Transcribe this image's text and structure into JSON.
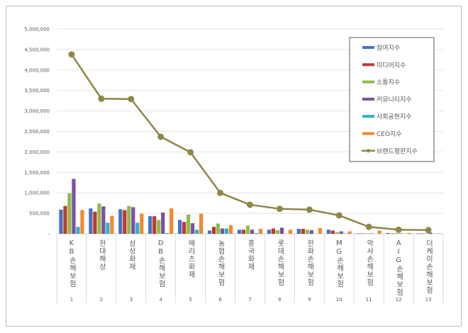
{
  "chart_data": {
    "type": "bar+line",
    "categories": [
      "KB손해보험",
      "현대해상",
      "삼성화재",
      "DB손해보험",
      "메리츠화재",
      "농협손해보험",
      "흥국화재",
      "롯데손해보험",
      "한화손해보험",
      "MG손해보험",
      "악사손해보험",
      "AIG손해보험",
      "더케이손해보험"
    ],
    "ranks": [
      "1",
      "2",
      "3",
      "4",
      "5",
      "6",
      "7",
      "8",
      "9",
      "10",
      "11",
      "12",
      "13"
    ],
    "ylim": [
      0,
      5000000
    ],
    "yticks": [
      0,
      500000,
      1000000,
      1500000,
      2000000,
      2500000,
      3000000,
      3500000,
      4000000,
      4500000,
      5000000
    ],
    "ytick_labels": [
      "-",
      "500,000",
      "1,000,000",
      "1,500,000",
      "2,000,000",
      "2,500,000",
      "3,000,000",
      "3,500,000",
      "4,000,000",
      "4,500,000",
      "5,000,000"
    ],
    "grid": true,
    "legend_placement": "top-right",
    "series": [
      {
        "name": "참여지수",
        "type": "bar",
        "color": "#4472c4",
        "values": [
          590000,
          620000,
          600000,
          430000,
          340000,
          80000,
          100000,
          100000,
          120000,
          100000,
          10000,
          20000,
          10000
        ]
      },
      {
        "name": "미디어지수",
        "type": "bar",
        "color": "#c0392b",
        "values": [
          680000,
          540000,
          580000,
          430000,
          290000,
          170000,
          100000,
          130000,
          120000,
          80000,
          10000,
          10000,
          10000
        ]
      },
      {
        "name": "소통지수",
        "type": "bar",
        "color": "#8fbc45",
        "values": [
          990000,
          740000,
          680000,
          340000,
          470000,
          250000,
          200000,
          90000,
          100000,
          40000,
          10000,
          20000,
          10000
        ]
      },
      {
        "name": "커뮤니티지수",
        "type": "bar",
        "color": "#7b4fa8",
        "values": [
          1340000,
          670000,
          650000,
          520000,
          260000,
          130000,
          100000,
          150000,
          90000,
          60000,
          10000,
          10000,
          30000
        ]
      },
      {
        "name": "사회공헌지수",
        "type": "bar",
        "color": "#31b0c9",
        "values": [
          170000,
          270000,
          270000,
          20000,
          100000,
          130000,
          20000,
          0,
          0,
          10000,
          0,
          0,
          0
        ]
      },
      {
        "name": "CEO지수",
        "type": "bar",
        "color": "#f28a2e",
        "values": [
          580000,
          440000,
          490000,
          620000,
          490000,
          210000,
          120000,
          100000,
          140000,
          60000,
          80000,
          20000,
          10000
        ]
      },
      {
        "name": "브랜드평판지수",
        "type": "line",
        "color": "#8f8748",
        "values": [
          4380000,
          3300000,
          3290000,
          2370000,
          1990000,
          1000000,
          710000,
          610000,
          590000,
          450000,
          170000,
          100000,
          90000
        ]
      }
    ]
  }
}
